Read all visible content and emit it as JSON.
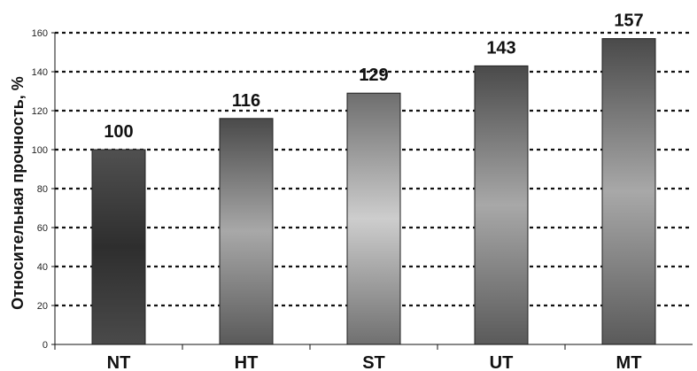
{
  "chart_data": {
    "type": "bar",
    "categories": [
      "NT",
      "HT",
      "ST",
      "UT",
      "MT"
    ],
    "values": [
      100,
      116,
      129,
      143,
      157
    ],
    "data_labels": [
      "100",
      "116",
      "129",
      "143",
      "157"
    ],
    "title": "",
    "xlabel": "",
    "ylabel": "Относительная прочность, %",
    "ylim": [
      0,
      160
    ],
    "yticks": [
      "0",
      "20",
      "40",
      "60",
      "80",
      "100",
      "120",
      "140",
      "160"
    ],
    "grid": true,
    "legend": "none",
    "colors": {
      "bar_dark": "#3a3a3a",
      "bar_light": "#c4c4c4",
      "grid": "#111111"
    }
  }
}
